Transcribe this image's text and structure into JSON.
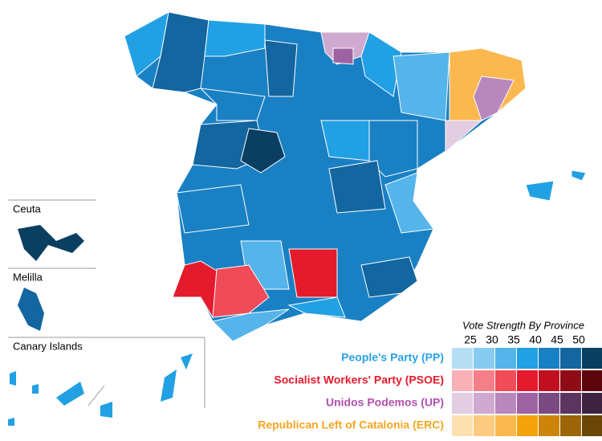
{
  "insets": [
    {
      "label": "Ceuta"
    },
    {
      "label": "Melilla"
    },
    {
      "label": "Canary Islands"
    }
  ],
  "legend": {
    "title": "Vote Strength By Province",
    "scale": [
      25,
      30,
      35,
      40,
      45,
      50
    ],
    "parties": [
      {
        "name": "People's Party (PP)",
        "color": "#29a3e3",
        "shades": [
          "#b5def5",
          "#88cbf0",
          "#55b4ea",
          "#22a0e4",
          "#1a80c4",
          "#13669f",
          "#0a3f62"
        ]
      },
      {
        "name": "Socialist Workers' Party (PSOE)",
        "color": "#e41a2d",
        "shades": [
          "#f8b1b6",
          "#f47f88",
          "#ef4b58",
          "#e41a2d",
          "#c0101f",
          "#8f0b16",
          "#5e060d"
        ]
      },
      {
        "name": "Unidos Podemos (UP)",
        "color": "#b34fb0",
        "shades": [
          "#e2cde3",
          "#cfa9d0",
          "#b887bb",
          "#9e64a2",
          "#7c4a82",
          "#5b345f",
          "#3e2340"
        ]
      },
      {
        "name": "Republican Left of Catalonia (ERC)",
        "color": "#f5a623",
        "shades": [
          "#fde0b0",
          "#fccb80",
          "#fbb84f",
          "#f5a20c",
          "#cc850a",
          "#9c6507",
          "#6b4505"
        ]
      }
    ]
  }
}
